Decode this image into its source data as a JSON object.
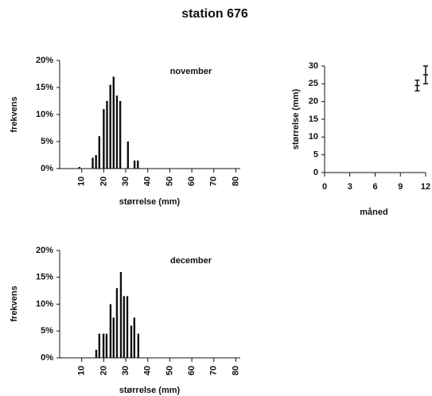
{
  "title": "station 676",
  "chart_data": [
    {
      "type": "bar",
      "title": "november",
      "x_label": "størrelse (mm)",
      "y_label": "frekvens",
      "color": "#111111",
      "x": [
        9,
        15,
        16.5,
        18,
        20,
        21.5,
        23,
        24.5,
        26,
        27.5,
        31,
        34,
        35.5
      ],
      "values": [
        0.3,
        2,
        2.5,
        6,
        11,
        12.5,
        15.5,
        17,
        13.5,
        12.5,
        5,
        1.5,
        1.5
      ],
      "xlim": [
        0,
        82
      ],
      "xticks": [
        10,
        20,
        30,
        40,
        50,
        60,
        70,
        80
      ],
      "ylim": [
        0,
        20
      ],
      "yticks": [
        {
          "value": 0,
          "label": "0%"
        },
        {
          "value": 5,
          "label": "5%"
        },
        {
          "value": 10,
          "label": "10%"
        },
        {
          "value": 15,
          "label": "15%"
        },
        {
          "value": 20,
          "label": "20%"
        }
      ]
    },
    {
      "type": "bar",
      "title": "december",
      "x_label": "størrelse (mm)",
      "y_label": "frekvens",
      "color": "#111111",
      "x": [
        16.6,
        18,
        19.9,
        21.3,
        23.1,
        24.5,
        26,
        27.8,
        29.2,
        30.7,
        32.5,
        33.9,
        35.7
      ],
      "values": [
        1.5,
        4.5,
        4.5,
        4.5,
        10,
        7.5,
        13,
        16,
        11.5,
        11.5,
        6,
        7.5,
        4.5
      ],
      "xlim": [
        0,
        82
      ],
      "xticks": [
        10,
        20,
        30,
        40,
        50,
        60,
        70,
        80
      ],
      "ylim": [
        0,
        20
      ],
      "yticks": [
        {
          "value": 0,
          "label": "0%"
        },
        {
          "value": 5,
          "label": "5%"
        },
        {
          "value": 10,
          "label": "10%"
        },
        {
          "value": 15,
          "label": "15%"
        },
        {
          "value": 20,
          "label": "20%"
        }
      ]
    },
    {
      "type": "errorbar",
      "x_label": "måned",
      "y_label": "størrelse (mm)",
      "color": "#111111",
      "x": [
        11,
        12
      ],
      "values": [
        24.5,
        27.5
      ],
      "errors": [
        1.5,
        2.5
      ],
      "xlim": [
        0,
        12
      ],
      "xticks": [
        0,
        3,
        6,
        9,
        12
      ],
      "ylim": [
        0,
        30
      ],
      "yticks": [
        0,
        5,
        10,
        15,
        20,
        25,
        30
      ]
    }
  ]
}
